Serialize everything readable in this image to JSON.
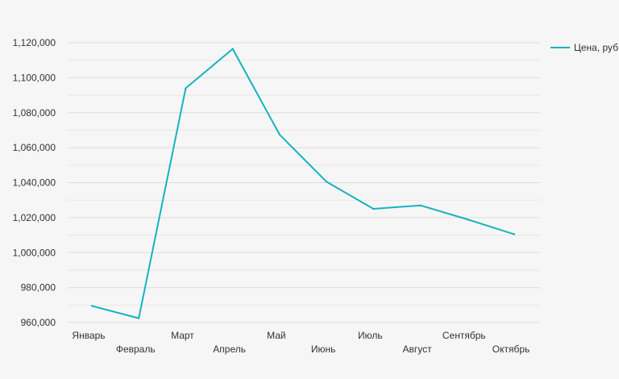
{
  "chart_data": {
    "type": "line",
    "categories": [
      "Январь",
      "Февраль",
      "Март",
      "Апрель",
      "Май",
      "Июнь",
      "Июль",
      "Август",
      "Сентябрь",
      "Октябрь"
    ],
    "series": [
      {
        "name": "Цена, руб",
        "values": [
          969500,
          962500,
          1094000,
          1116500,
          1067500,
          1040500,
          1025000,
          1027000,
          1019000,
          1010500
        ],
        "color": "#16b3c1"
      }
    ],
    "ylim": [
      960000,
      1120000
    ],
    "y_ticks": [
      960000,
      980000,
      1000000,
      1020000,
      1040000,
      1060000,
      1080000,
      1100000,
      1120000
    ],
    "y_tick_labels": [
      "960,000",
      "980,000",
      "1,000,000",
      "1,020,000",
      "1,040,000",
      "1,060,000",
      "1,080,000",
      "1,100,000",
      "1,120,000"
    ],
    "grid": true,
    "legend_position": "top-right",
    "title": "",
    "xlabel": "",
    "ylabel": ""
  }
}
